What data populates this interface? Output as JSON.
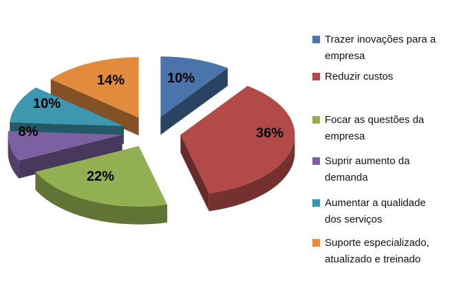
{
  "chart": {
    "title": "",
    "background_color": "#FFFFFF",
    "style": "3d-exploded-pie",
    "label_unit": "%"
  },
  "chart_data": {
    "type": "pie",
    "title": "",
    "categories": [
      "Trazer inovações para a empresa",
      "Reduzir custos",
      "Focar as questões da empresa",
      "Suprir aumento da demanda",
      "Aumentar a qualidade dos serviços",
      "Suporte especializado, atualizado e treinado"
    ],
    "values": [
      10,
      36,
      22,
      8,
      10,
      14
    ],
    "labels": [
      "10%",
      "36%",
      "22%",
      "8%",
      "10%",
      "14%"
    ],
    "colors": [
      "#4A74AB",
      "#B24A48",
      "#92AF51",
      "#7C60A2",
      "#3D97AF",
      "#E28B3D"
    ],
    "legend_position": "right",
    "start_angle_deg": 0,
    "direction": "clockwise"
  },
  "legend": {
    "items": [
      {
        "label": "Trazer inovações para a\nempresa",
        "color": "#4A74AB"
      },
      {
        "label": "Reduzir custos",
        "color": "#B24A48"
      },
      {
        "label": "Focar as questões da\nempresa",
        "color": "#92AF51"
      },
      {
        "label": "Suprir aumento da\ndemanda",
        "color": "#7C60A2"
      },
      {
        "label": "Aumentar a qualidade\ndos serviços",
        "color": "#3D97AF"
      },
      {
        "label": "Suporte especializado,\natualizado e treinado",
        "color": "#E28B3D"
      }
    ]
  }
}
